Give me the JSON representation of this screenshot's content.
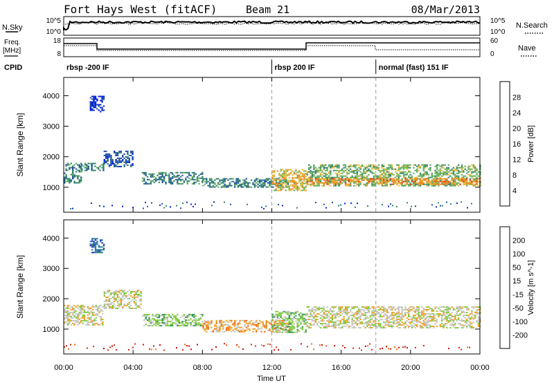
{
  "header": {
    "station": "Fort Hays West (fitACF)",
    "beam": "Beam 21",
    "date": "08/Mar/2013"
  },
  "top_panels": {
    "nsky_label": "N.Sky",
    "nsearch_label": "N.Search",
    "noise_ticks_left": [
      "10^5",
      "10^0"
    ],
    "noise_ticks_right": [
      "10^5",
      "10^0"
    ],
    "freq_label_1": "Freq.",
    "freq_label_2": "[MHz]",
    "freq_ticks": [
      "18",
      "8"
    ],
    "nave_label": "Nave",
    "nave_ticks": [
      "60",
      "0"
    ],
    "cpid_label": "CPID",
    "cpid_segments": [
      {
        "label": "rbsp -200 IF",
        "start_h": 0
      },
      {
        "label": "rbsp 200 IF",
        "start_h": 12
      },
      {
        "label": "normal (fast) 151 IF",
        "start_h": 18
      }
    ]
  },
  "chart_data": [
    {
      "type": "heatmap",
      "name": "power",
      "ylabel": "Slant Range [km]",
      "ylim": [
        180,
        4600
      ],
      "yticks": [
        "1000",
        "2000",
        "3000",
        "4000"
      ],
      "xlim_h": [
        0,
        24
      ],
      "colorbar_label": "Power [dB]",
      "colorbar_ticks": [
        "4",
        "8",
        "12",
        "16",
        "20",
        "24",
        "28"
      ],
      "colors": [
        "#0020e0",
        "#1e4fa0",
        "#2f7f6a",
        "#5fae5a",
        "#e7b93a",
        "#f08a1a",
        "#e33c1a",
        "#d00000"
      ],
      "regions": [
        {
          "t0": 0.0,
          "t1": 1.0,
          "r0": 1150,
          "r1": 1800,
          "level": 2
        },
        {
          "t0": 1.0,
          "t1": 2.3,
          "r0": 1550,
          "r1": 1800,
          "level": 2
        },
        {
          "t0": 2.3,
          "t1": 4.0,
          "r0": 1700,
          "r1": 2200,
          "level": 1
        },
        {
          "t0": 1.5,
          "t1": 2.3,
          "r0": 3500,
          "r1": 4000,
          "level": 0
        },
        {
          "t0": 4.5,
          "t1": 8.0,
          "r0": 1100,
          "r1": 1500,
          "level": 2
        },
        {
          "t0": 8.0,
          "t1": 13.0,
          "r0": 1000,
          "r1": 1300,
          "level": 2
        },
        {
          "t0": 12.0,
          "t1": 14.0,
          "r0": 900,
          "r1": 1600,
          "level": 4
        },
        {
          "t0": 14.0,
          "t1": 24.0,
          "r0": 1050,
          "r1": 1750,
          "level": 3
        },
        {
          "t0": 14.0,
          "t1": 24.0,
          "r0": 1100,
          "r1": 1300,
          "level": 5
        }
      ]
    },
    {
      "type": "heatmap",
      "name": "velocity",
      "ylabel": "Slant Range [km]",
      "ylim": [
        180,
        4600
      ],
      "yticks": [
        "1000",
        "2000",
        "3000",
        "4000"
      ],
      "xlim_h": [
        0,
        24
      ],
      "colorbar_label": "Velocity [m s^-1]",
      "colorbar_ticks": [
        "200",
        "100",
        "50",
        "15",
        "-15",
        "-50",
        "-100",
        "-200"
      ],
      "colors": [
        "#1530c0",
        "#2a6fb0",
        "#2e8f5a",
        "#7ccc3a",
        "#c8c8c0",
        "#f0a020",
        "#f06a10",
        "#e02010",
        "#d00000"
      ],
      "regions": [
        {
          "t0": 0.0,
          "t1": 2.3,
          "r0": 1150,
          "r1": 1800,
          "level": 4
        },
        {
          "t0": 2.3,
          "t1": 4.5,
          "r0": 1700,
          "r1": 2300,
          "level": 4
        },
        {
          "t0": 1.5,
          "t1": 2.3,
          "r0": 3500,
          "r1": 4000,
          "level": 1
        },
        {
          "t0": 4.5,
          "t1": 8.0,
          "r0": 1100,
          "r1": 1500,
          "level": 3
        },
        {
          "t0": 8.0,
          "t1": 13.0,
          "r0": 900,
          "r1": 1300,
          "level": 5
        },
        {
          "t0": 12.0,
          "t1": 14.0,
          "r0": 900,
          "r1": 1600,
          "level": 3
        },
        {
          "t0": 14.0,
          "t1": 24.0,
          "r0": 1050,
          "r1": 1750,
          "level": 4
        }
      ]
    }
  ],
  "time_axis": {
    "label": "Time UT",
    "ticks": [
      "00:00",
      "04:00",
      "08:00",
      "12:00",
      "16:00",
      "20:00",
      "00:00"
    ]
  }
}
